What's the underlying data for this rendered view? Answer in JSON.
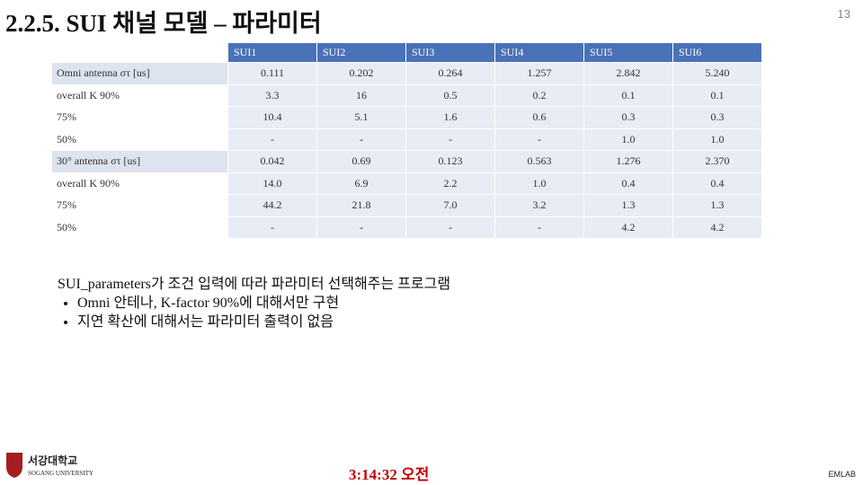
{
  "header": {
    "title": "2.2.5. SUI 채널 모델 – 파라미터",
    "page_number": "13"
  },
  "table": {
    "columns": [
      "SUI1",
      "SUI2",
      "SUI3",
      "SUI4",
      "SUI5",
      "SUI6"
    ],
    "rows": [
      [
        "Omni antenna στ [us]",
        "0.111",
        "0.202",
        "0.264",
        "1.257",
        "2.842",
        "5.240"
      ],
      [
        "overall K 90%",
        "3.3",
        "16",
        "0.5",
        "0.2",
        "0.1",
        "0.1"
      ],
      [
        "75%",
        "10.4",
        "5.1",
        "1.6",
        "0.6",
        "0.3",
        "0.3"
      ],
      [
        "50%",
        "-",
        "-",
        "-",
        "-",
        "1.0",
        "1.0"
      ],
      [
        "30° antenna στ [us]",
        "0.042",
        "0.69",
        "0.123",
        "0.563",
        "1.276",
        "2.370"
      ],
      [
        "overall K 90%",
        "14.0",
        "6.9",
        "2.2",
        "1.0",
        "0.4",
        "0.4"
      ],
      [
        "75%",
        "44.2",
        "21.8",
        "7.0",
        "3.2",
        "1.3",
        "1.3"
      ],
      [
        "50%",
        "-",
        "-",
        "-",
        "-",
        "4.2",
        "4.2"
      ]
    ]
  },
  "body": {
    "intro": "SUI_parameters가 조건 입력에 따라 파라미터 선택해주는 프로그램",
    "bullets": [
      "Omni 안테나, K-factor 90%에 대해서만 구현",
      "지연 확산에 대해서는 파라미터 출력이 없음"
    ]
  },
  "footer": {
    "time": "3:14:32 오전",
    "lab": "EMLAB",
    "logo_korean": "서강대학교",
    "logo_english": "SOGANG UNIVERSITY"
  }
}
